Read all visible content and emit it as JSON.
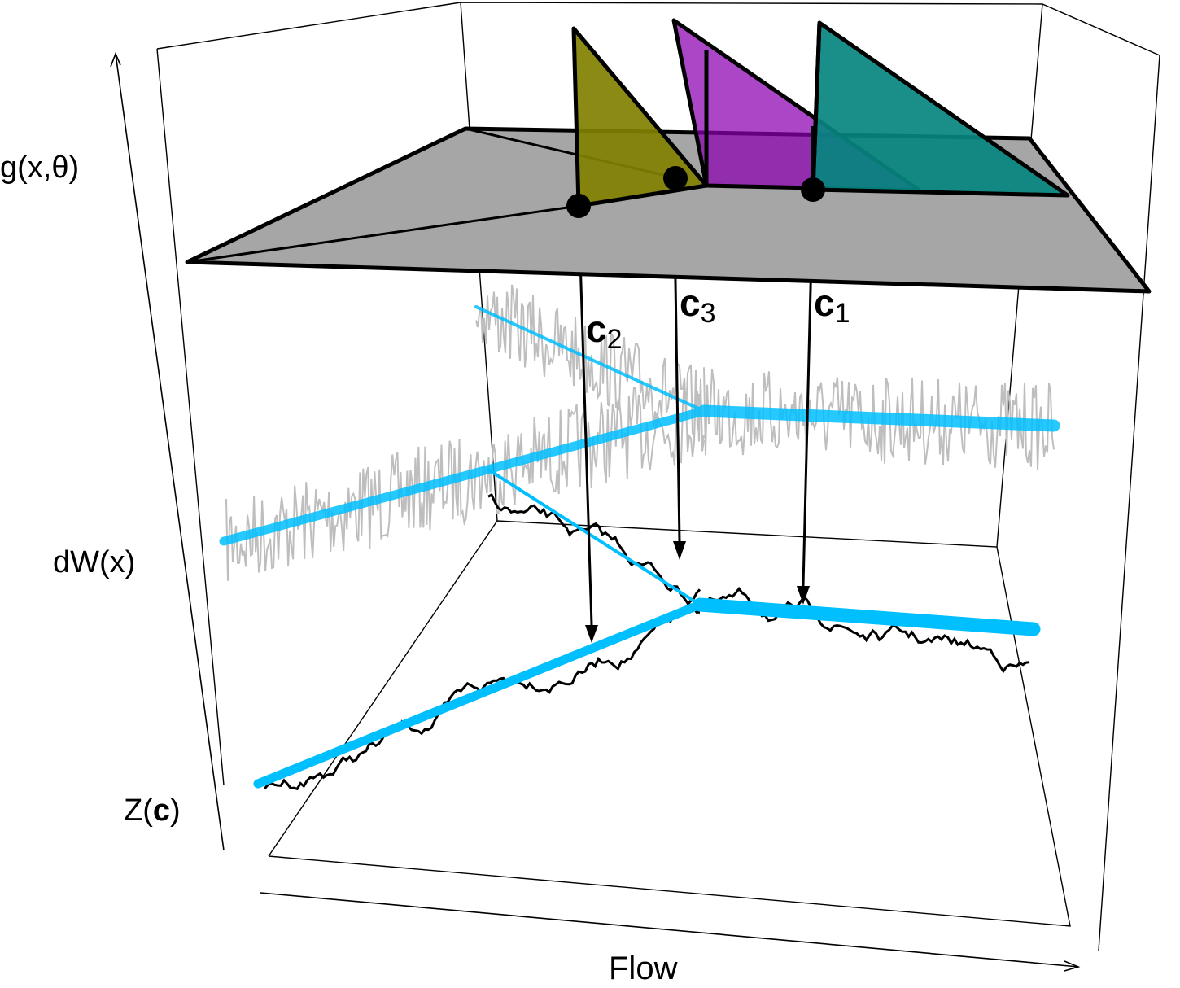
{
  "labels": {
    "g_axis": "g(x,θ)",
    "dw_axis": "dW(x)",
    "z_prefix": "Z(",
    "z_bold": "c",
    "z_suffix": ")",
    "flow_axis": "Flow"
  },
  "points": [
    {
      "name": "c",
      "sub": "2"
    },
    {
      "name": "c",
      "sub": "3"
    },
    {
      "name": "c",
      "sub": "1"
    }
  ],
  "colors": {
    "river": "#00BFFF",
    "noise": "#BEBEBE",
    "surface": "#A6A6A6",
    "tri_c2": "#808000",
    "tri_c3": "#8B00B0",
    "tri_c1": "#068680"
  }
}
